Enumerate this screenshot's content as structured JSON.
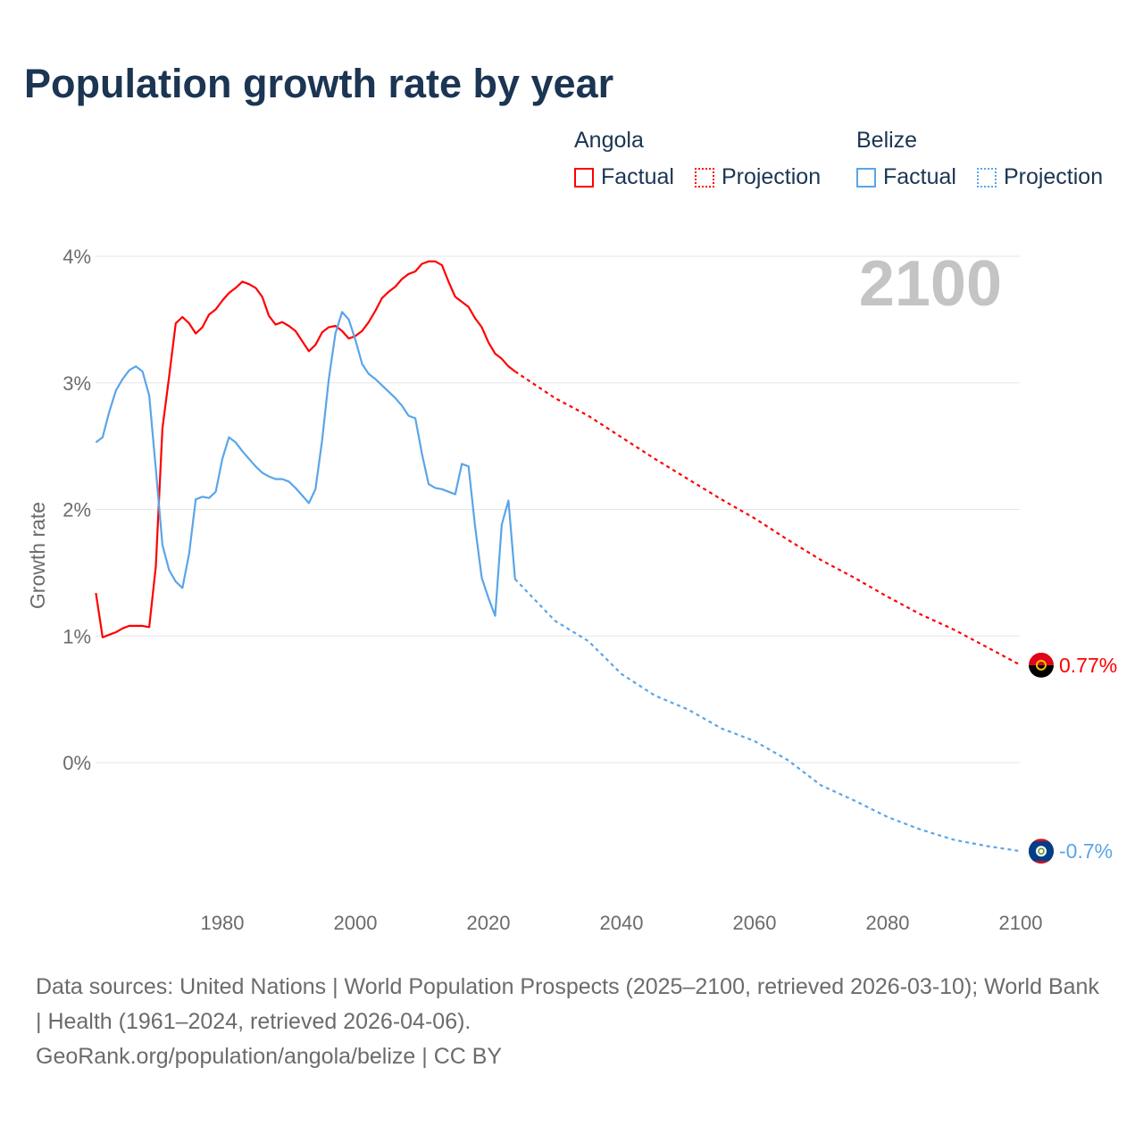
{
  "title": "Population growth rate by year",
  "legend": {
    "groups": [
      {
        "name": "Angola",
        "factual_label": "Factual",
        "projection_label": "Projection",
        "color": "#ff0000"
      },
      {
        "name": "Belize",
        "factual_label": "Factual",
        "projection_label": "Projection",
        "color": "#5aa5e8"
      }
    ]
  },
  "year_label": "2100",
  "footer": {
    "sources": "Data sources: United Nations | World Population Prospects (2025–2100, retrieved 2026-03-10); World Bank | Health (1961–2024, retrieved 2026-04-06).",
    "credit": "GeoRank.org/population/angola/belize | CC BY"
  },
  "chart_data": {
    "type": "line",
    "title": "Population growth rate by year",
    "xlabel": "",
    "ylabel": "Growth rate",
    "xlim": [
      1961,
      2100
    ],
    "ylim": [
      -1.1,
      4.0
    ],
    "x_ticks": [
      1980,
      2000,
      2020,
      2040,
      2060,
      2080,
      2100
    ],
    "y_ticks": [
      {
        "v": 4,
        "label": "4%"
      },
      {
        "v": 3,
        "label": "3%"
      },
      {
        "v": 2,
        "label": "2%"
      },
      {
        "v": 1,
        "label": "1%"
      },
      {
        "v": 0,
        "label": "0%"
      }
    ],
    "grid": true,
    "series": [
      {
        "name": "Angola",
        "kind": "factual",
        "color": "#ff0000",
        "x_start": 1961,
        "values": [
          1.34,
          0.99,
          1.01,
          1.03,
          1.06,
          1.08,
          1.08,
          1.08,
          1.07,
          1.55,
          2.64,
          3.05,
          3.47,
          3.52,
          3.47,
          3.39,
          3.44,
          3.54,
          3.58,
          3.65,
          3.71,
          3.75,
          3.8,
          3.78,
          3.75,
          3.68,
          3.53,
          3.46,
          3.48,
          3.45,
          3.41,
          3.33,
          3.25,
          3.3,
          3.4,
          3.44,
          3.45,
          3.41,
          3.35,
          3.37,
          3.41,
          3.48,
          3.57,
          3.67,
          3.72,
          3.76,
          3.82,
          3.86,
          3.88,
          3.94,
          3.96,
          3.96,
          3.93,
          3.8,
          3.68,
          3.64,
          3.6,
          3.51,
          3.44,
          3.32,
          3.23,
          3.19,
          3.13,
          3.09
        ]
      },
      {
        "name": "Angola",
        "kind": "projection",
        "color": "#ff0000",
        "x": [
          2024,
          2030,
          2035,
          2040,
          2045,
          2050,
          2055,
          2060,
          2065,
          2070,
          2075,
          2080,
          2085,
          2090,
          2095,
          2100
        ],
        "values": [
          3.09,
          2.88,
          2.74,
          2.57,
          2.4,
          2.24,
          2.08,
          1.93,
          1.76,
          1.6,
          1.46,
          1.31,
          1.17,
          1.05,
          0.91,
          0.77
        ]
      },
      {
        "name": "Belize",
        "kind": "factual",
        "color": "#5aa5e8",
        "x_start": 1961,
        "values": [
          2.53,
          2.57,
          2.77,
          2.94,
          3.03,
          3.1,
          3.13,
          3.09,
          2.9,
          2.32,
          1.72,
          1.52,
          1.43,
          1.38,
          1.65,
          2.08,
          2.1,
          2.09,
          2.14,
          2.4,
          2.57,
          2.53,
          2.46,
          2.4,
          2.34,
          2.29,
          2.26,
          2.24,
          2.24,
          2.22,
          2.17,
          2.11,
          2.05,
          2.16,
          2.55,
          3.03,
          3.39,
          3.56,
          3.5,
          3.34,
          3.15,
          3.07,
          3.03,
          2.98,
          2.93,
          2.88,
          2.82,
          2.74,
          2.72,
          2.44,
          2.2,
          2.17,
          2.16,
          2.14,
          2.12,
          2.36,
          2.34,
          1.86,
          1.46,
          1.3,
          1.16,
          1.88,
          2.07,
          1.45
        ]
      },
      {
        "name": "Belize",
        "kind": "projection",
        "color": "#5aa5e8",
        "x": [
          2024,
          2030,
          2035,
          2040,
          2045,
          2050,
          2055,
          2060,
          2065,
          2070,
          2075,
          2080,
          2085,
          2090,
          2095,
          2100
        ],
        "values": [
          1.45,
          1.12,
          0.96,
          0.7,
          0.53,
          0.42,
          0.27,
          0.17,
          0.02,
          -0.18,
          -0.3,
          -0.43,
          -0.53,
          -0.61,
          -0.66,
          -0.7
        ]
      }
    ],
    "end_labels": [
      {
        "country": "Angola",
        "label": "0.77%",
        "value": 0.77,
        "color": "#ff0000",
        "flag": "angola-flag"
      },
      {
        "country": "Belize",
        "label": "-0.7%",
        "value": -0.7,
        "color": "#5aa5e8",
        "flag": "belize-flag"
      }
    ]
  }
}
